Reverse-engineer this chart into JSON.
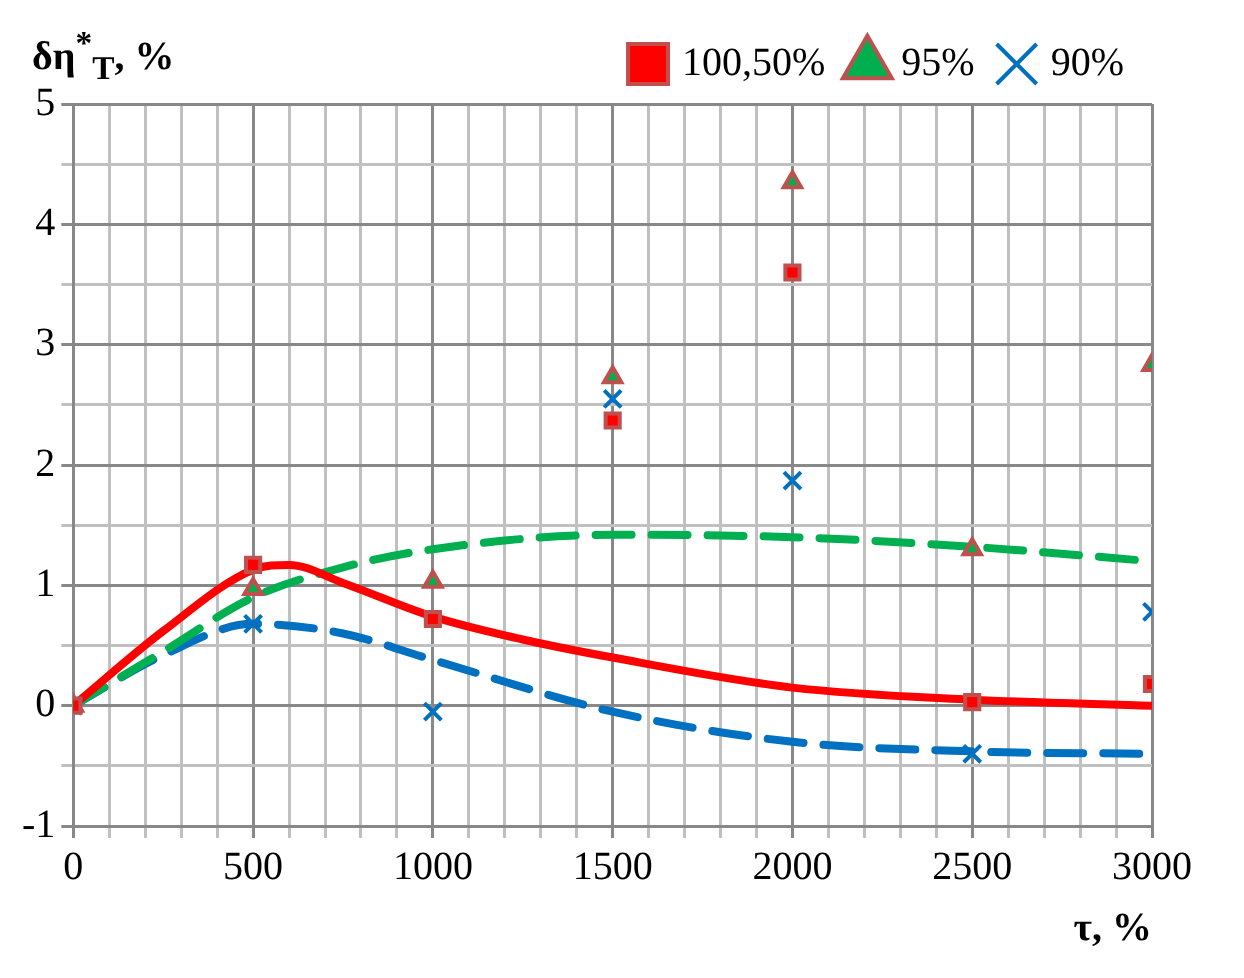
{
  "chart_data": {
    "type": "scatter",
    "ylabel": "δη$^{*}$$_{Т}$, %",
    "xlabel": "τ, %",
    "xlim": [
      0,
      3000
    ],
    "ylim": [
      -1,
      5
    ],
    "xticks": [
      0,
      {
        "value": 100,
        "label": null
      },
      {
        "value": 200,
        "label": null
      },
      {
        "value": 300,
        "label": null
      },
      {
        "value": 400,
        "label": null
      },
      500,
      {
        "value": 600,
        "label": null
      },
      {
        "value": 700,
        "label": null
      },
      {
        "value": 800,
        "label": null
      },
      {
        "value": 900,
        "label": null
      },
      1000,
      {
        "value": 1100,
        "label": null
      },
      {
        "value": 1200,
        "label": null
      },
      {
        "value": 1300,
        "label": null
      },
      {
        "value": 1400,
        "label": null
      },
      1500,
      {
        "value": 1600,
        "label": null
      },
      {
        "value": 1700,
        "label": null
      },
      {
        "value": 1800,
        "label": null
      },
      {
        "value": 1900,
        "label": null
      },
      2000,
      {
        "value": 2100,
        "label": null
      },
      {
        "value": 2200,
        "label": null
      },
      {
        "value": 2300,
        "label": null
      },
      {
        "value": 2400,
        "label": null
      },
      2500,
      {
        "value": 2600,
        "label": null
      },
      {
        "value": 2700,
        "label": null
      },
      {
        "value": 2800,
        "label": null
      },
      {
        "value": 2900,
        "label": null
      },
      3000
    ],
    "yticks": [
      -1,
      {
        "value": -0.5,
        "label": null
      },
      0,
      {
        "value": 0.5,
        "label": null
      },
      1,
      {
        "value": 1.5,
        "label": null
      },
      2,
      {
        "value": 2.5,
        "label": null
      },
      3,
      {
        "value": 3.5,
        "label": null
      },
      4,
      {
        "value": 4.5,
        "label": null
      },
      5
    ],
    "grid": true,
    "legend": "top right",
    "series": [
      {
        "name": "100,50%",
        "marker": "square",
        "color": "#ff0000",
        "x": [
          0,
          500,
          1000,
          1500,
          2000,
          2500,
          3000
        ],
        "values": [
          0,
          1.17,
          0.72,
          2.37,
          3.6,
          0.03,
          0.18
        ]
      },
      {
        "name": "95%",
        "marker": "triangle",
        "color": "#00b050",
        "x": [
          0,
          500,
          1000,
          1500,
          2000,
          2500,
          3000
        ],
        "values": [
          0,
          0.97,
          1.03,
          2.73,
          4.35,
          1.3,
          2.83
        ]
      },
      {
        "name": "90%",
        "marker": "cross",
        "color": "#0070c0",
        "x": [
          0,
          500,
          1000,
          1500,
          2000,
          2500,
          3000
        ],
        "values": [
          0,
          0.68,
          -0.05,
          2.55,
          1.87,
          -0.4,
          0.78
        ]
      },
      {
        "type": "line",
        "line_style": "solid",
        "color": "#ff0000",
        "x": [
          0,
          250,
          500,
          600,
          750,
          1000,
          1250,
          1500,
          2000,
          2500,
          3000
        ],
        "values": [
          0,
          0.62,
          1.13,
          1.17,
          1.02,
          0.74,
          0.55,
          0.4,
          0.15,
          0.05,
          0.0
        ]
      },
      {
        "type": "line",
        "line_style": "dashed",
        "color": "#00b050",
        "x": [
          0,
          250,
          500,
          750,
          1000,
          1500,
          2000,
          2500,
          3000
        ],
        "values": [
          0,
          0.45,
          0.9,
          1.15,
          1.3,
          1.42,
          1.4,
          1.32,
          1.2
        ]
      },
      {
        "type": "line",
        "line_style": "dashed",
        "color": "#0070c0",
        "x": [
          0,
          250,
          500,
          750,
          1000,
          1500,
          2000,
          2500,
          3000
        ],
        "values": [
          0,
          0.42,
          0.68,
          0.6,
          0.38,
          -0.05,
          -0.3,
          -0.38,
          -0.4
        ]
      }
    ]
  }
}
